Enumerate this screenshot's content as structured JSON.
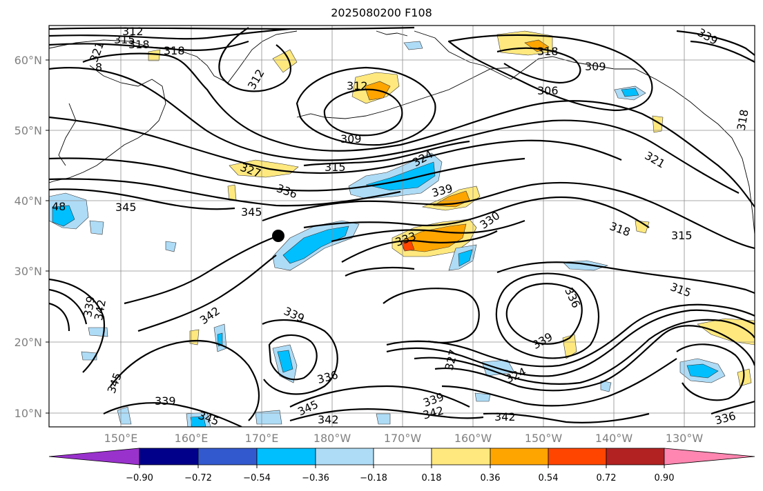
{
  "title": "2025080200 F108",
  "map": {
    "latitude_labels": [
      "60°N",
      "50°N",
      "40°N",
      "30°N",
      "20°N",
      "10°N"
    ],
    "longitude_labels": [
      "150°E",
      "160°E",
      "170°E",
      "180°W",
      "170°W",
      "160°W",
      "150°W",
      "140°W",
      "130°W"
    ],
    "marker": {
      "name": "black-dot",
      "lat": 35,
      "lon": 173
    },
    "contour_color": "#000000",
    "contour_labels": [
      "312",
      "315",
      "318",
      "318",
      "321",
      "8",
      "312",
      "312",
      "309",
      "309",
      "306",
      "318",
      "321",
      "315",
      "324",
      "327",
      "336",
      "339",
      "345",
      "48",
      "345",
      "330",
      "333",
      "318",
      "315",
      "339",
      "342",
      "336",
      "315",
      "339",
      "342",
      "339",
      "324",
      "327",
      "339",
      "336",
      "345",
      "345",
      "342",
      "342",
      "342",
      "339",
      "336",
      "345",
      "339",
      "318"
    ]
  },
  "colorbar": {
    "tick_labels": [
      "−0.90",
      "−0.72",
      "−0.54",
      "−0.36",
      "−0.18",
      "0.18",
      "0.36",
      "0.54",
      "0.72",
      "0.90"
    ],
    "colors": [
      "#9932cc",
      "#00008b",
      "#3359cf",
      "#00bfff",
      "#aedcf7",
      "#ffffff",
      "#ffe97f",
      "#ffa500",
      "#ff4500",
      "#b22222",
      "#ff86b0"
    ]
  }
}
